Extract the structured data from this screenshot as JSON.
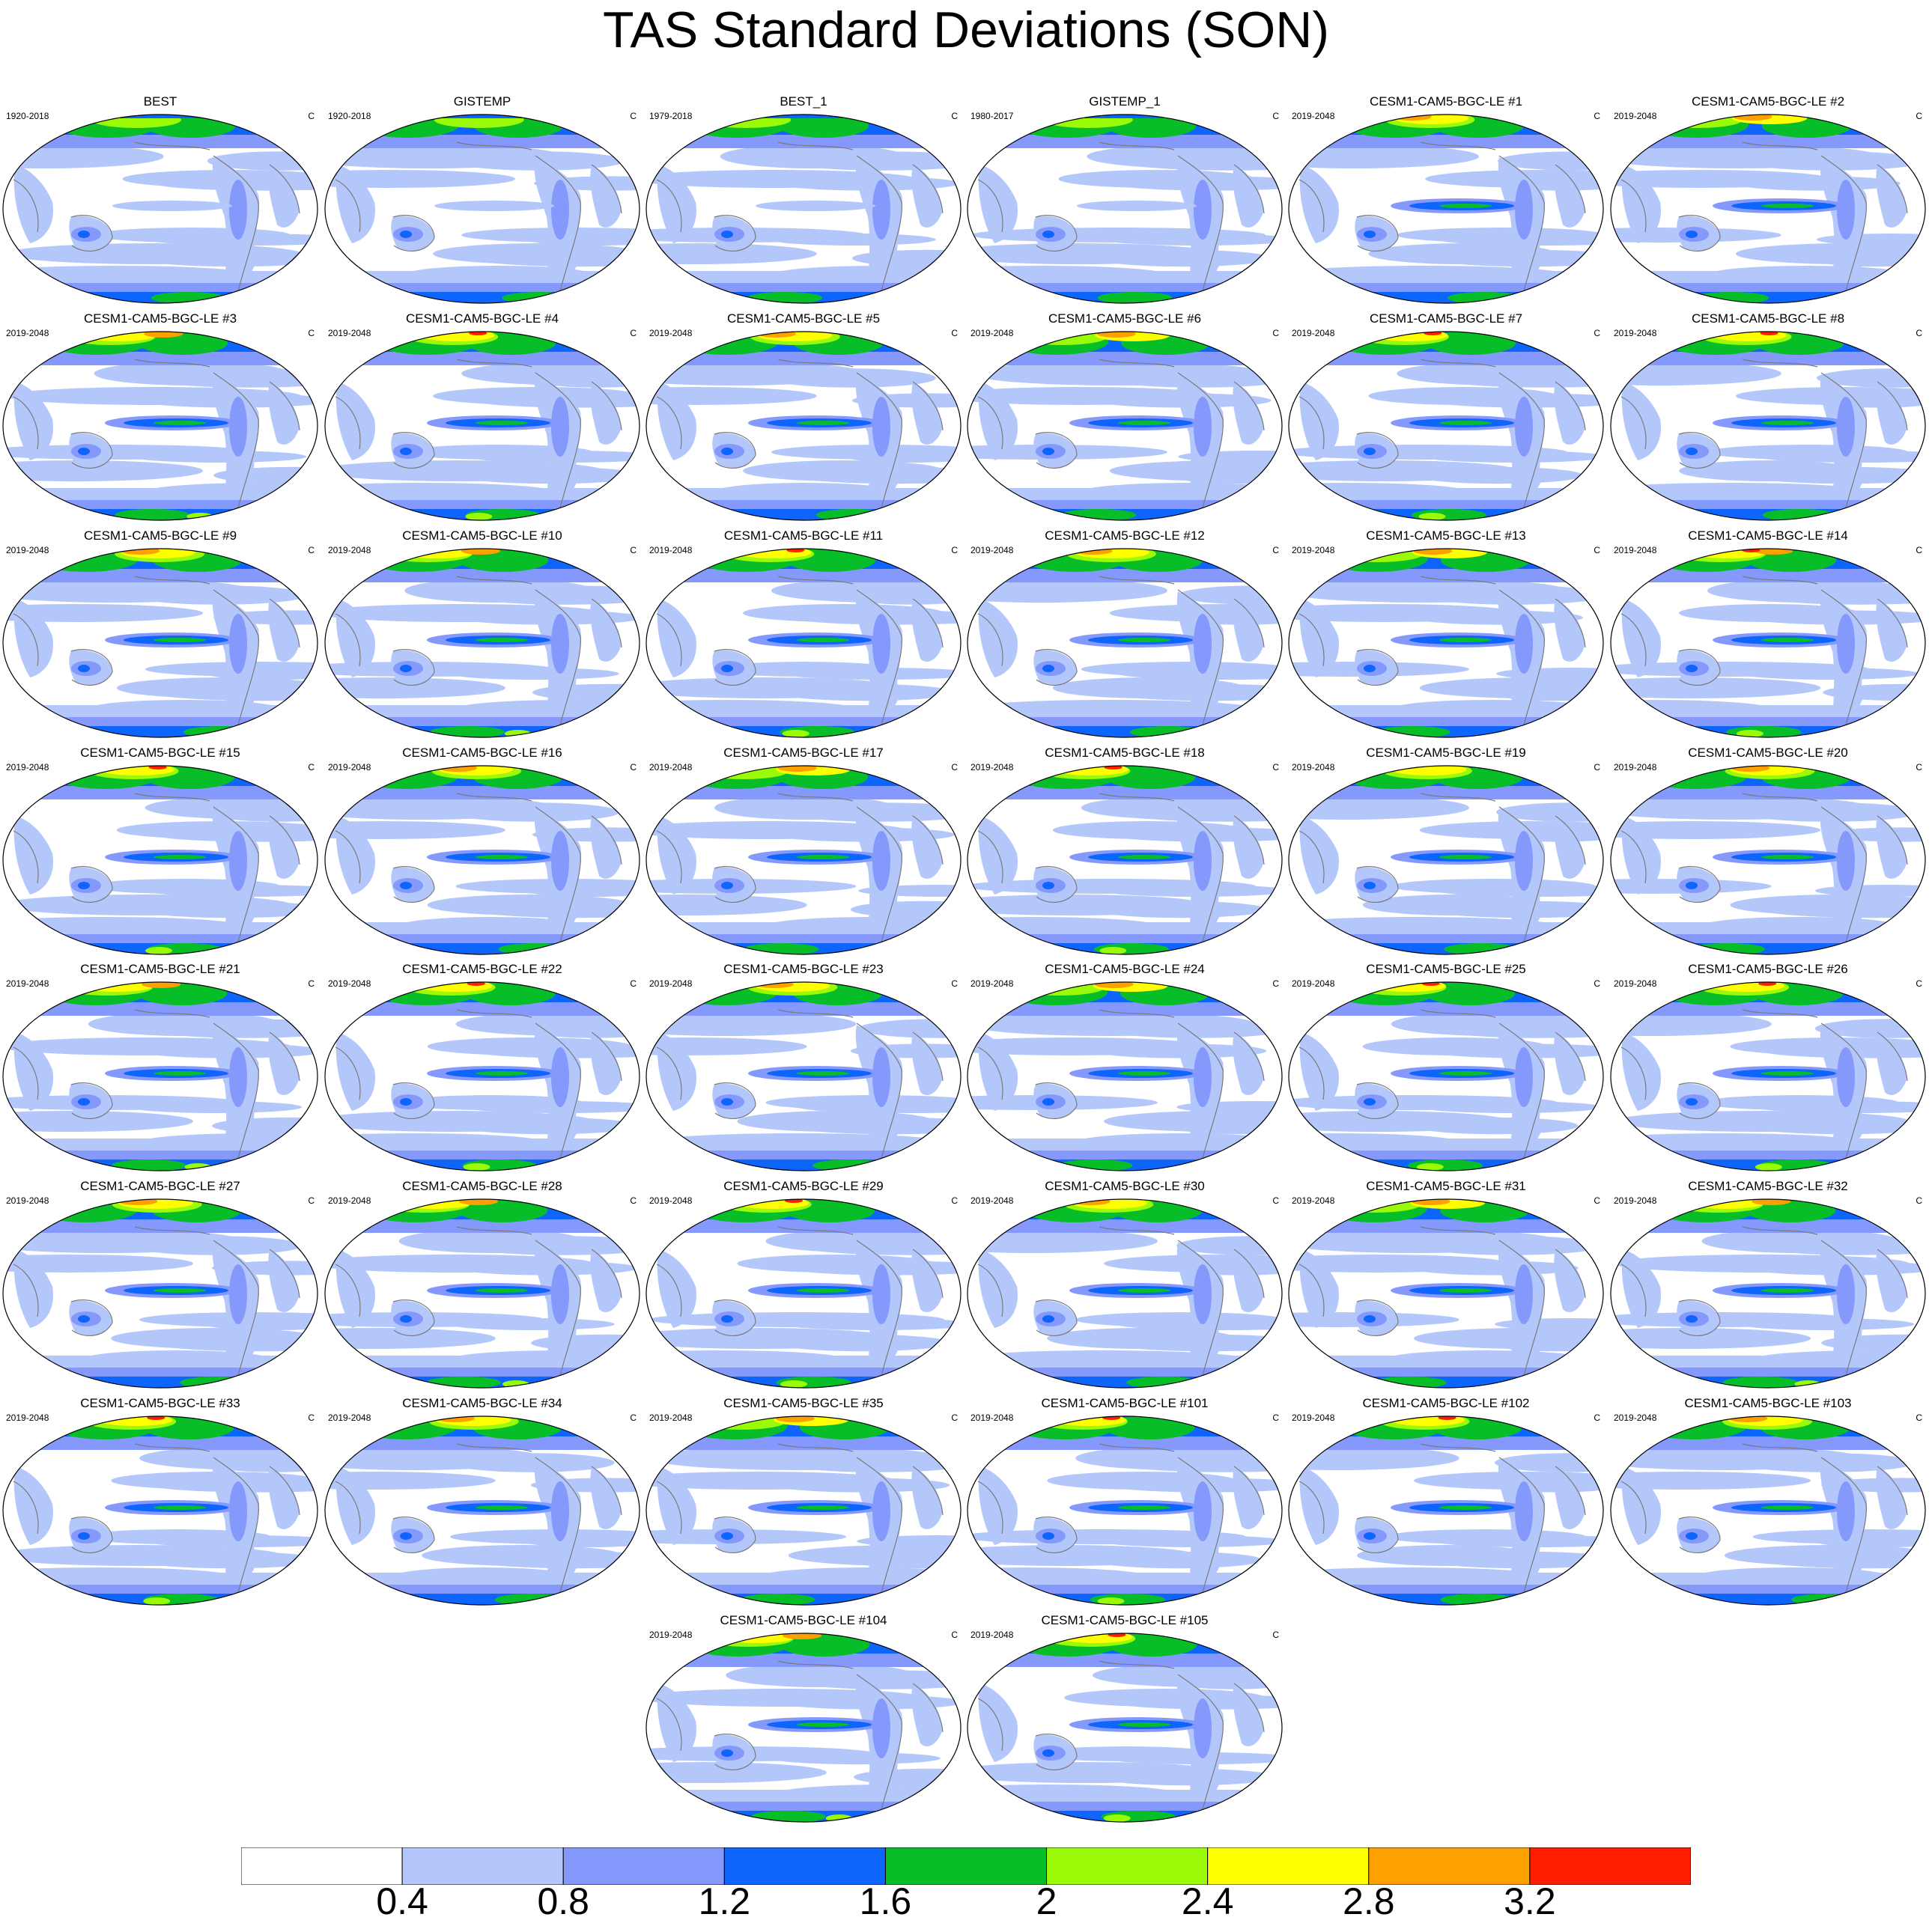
{
  "title": "TAS Standard Deviations (SON)",
  "units": "C",
  "panels": [
    {
      "title": "BEST",
      "period": "1920-2018",
      "palette": "obs"
    },
    {
      "title": "GISTEMP",
      "period": "1920-2018",
      "palette": "obs"
    },
    {
      "title": "BEST_1",
      "period": "1979-2018",
      "palette": "obs"
    },
    {
      "title": "GISTEMP_1",
      "period": "1980-2017",
      "palette": "obs"
    },
    {
      "title": "CESM1-CAM5-BGC-LE #1",
      "period": "2019-2048",
      "palette": "model"
    },
    {
      "title": "CESM1-CAM5-BGC-LE #2",
      "period": "2019-2048",
      "palette": "model"
    },
    {
      "title": "CESM1-CAM5-BGC-LE #3",
      "period": "2019-2048",
      "palette": "model"
    },
    {
      "title": "CESM1-CAM5-BGC-LE #4",
      "period": "2019-2048",
      "palette": "model"
    },
    {
      "title": "CESM1-CAM5-BGC-LE #5",
      "period": "2019-2048",
      "palette": "model"
    },
    {
      "title": "CESM1-CAM5-BGC-LE #6",
      "period": "2019-2048",
      "palette": "model"
    },
    {
      "title": "CESM1-CAM5-BGC-LE #7",
      "period": "2019-2048",
      "palette": "model"
    },
    {
      "title": "CESM1-CAM5-BGC-LE #8",
      "period": "2019-2048",
      "palette": "model"
    },
    {
      "title": "CESM1-CAM5-BGC-LE #9",
      "period": "2019-2048",
      "palette": "model"
    },
    {
      "title": "CESM1-CAM5-BGC-LE #10",
      "period": "2019-2048",
      "palette": "model"
    },
    {
      "title": "CESM1-CAM5-BGC-LE #11",
      "period": "2019-2048",
      "palette": "model"
    },
    {
      "title": "CESM1-CAM5-BGC-LE #12",
      "period": "2019-2048",
      "palette": "model"
    },
    {
      "title": "CESM1-CAM5-BGC-LE #13",
      "period": "2019-2048",
      "palette": "model"
    },
    {
      "title": "CESM1-CAM5-BGC-LE #14",
      "period": "2019-2048",
      "palette": "model"
    },
    {
      "title": "CESM1-CAM5-BGC-LE #15",
      "period": "2019-2048",
      "palette": "model"
    },
    {
      "title": "CESM1-CAM5-BGC-LE #16",
      "period": "2019-2048",
      "palette": "model"
    },
    {
      "title": "CESM1-CAM5-BGC-LE #17",
      "period": "2019-2048",
      "palette": "model"
    },
    {
      "title": "CESM1-CAM5-BGC-LE #18",
      "period": "2019-2048",
      "palette": "model"
    },
    {
      "title": "CESM1-CAM5-BGC-LE #19",
      "period": "2019-2048",
      "palette": "model"
    },
    {
      "title": "CESM1-CAM5-BGC-LE #20",
      "period": "2019-2048",
      "palette": "model"
    },
    {
      "title": "CESM1-CAM5-BGC-LE #21",
      "period": "2019-2048",
      "palette": "model"
    },
    {
      "title": "CESM1-CAM5-BGC-LE #22",
      "period": "2019-2048",
      "palette": "model"
    },
    {
      "title": "CESM1-CAM5-BGC-LE #23",
      "period": "2019-2048",
      "palette": "model"
    },
    {
      "title": "CESM1-CAM5-BGC-LE #24",
      "period": "2019-2048",
      "palette": "model"
    },
    {
      "title": "CESM1-CAM5-BGC-LE #25",
      "period": "2019-2048",
      "palette": "model"
    },
    {
      "title": "CESM1-CAM5-BGC-LE #26",
      "period": "2019-2048",
      "palette": "model"
    },
    {
      "title": "CESM1-CAM5-BGC-LE #27",
      "period": "2019-2048",
      "palette": "model"
    },
    {
      "title": "CESM1-CAM5-BGC-LE #28",
      "period": "2019-2048",
      "palette": "model"
    },
    {
      "title": "CESM1-CAM5-BGC-LE #29",
      "period": "2019-2048",
      "palette": "model"
    },
    {
      "title": "CESM1-CAM5-BGC-LE #30",
      "period": "2019-2048",
      "palette": "model"
    },
    {
      "title": "CESM1-CAM5-BGC-LE #31",
      "period": "2019-2048",
      "palette": "model"
    },
    {
      "title": "CESM1-CAM5-BGC-LE #32",
      "period": "2019-2048",
      "palette": "model"
    },
    {
      "title": "CESM1-CAM5-BGC-LE #33",
      "period": "2019-2048",
      "palette": "model"
    },
    {
      "title": "CESM1-CAM5-BGC-LE #34",
      "period": "2019-2048",
      "palette": "model"
    },
    {
      "title": "CESM1-CAM5-BGC-LE #35",
      "period": "2019-2048",
      "palette": "model"
    },
    {
      "title": "CESM1-CAM5-BGC-LE #101",
      "period": "2019-2048",
      "palette": "model"
    },
    {
      "title": "CESM1-CAM5-BGC-LE #102",
      "period": "2019-2048",
      "palette": "model"
    },
    {
      "title": "CESM1-CAM5-BGC-LE #103",
      "period": "2019-2048",
      "palette": "model"
    },
    {
      "title": "CESM1-CAM5-BGC-LE #104",
      "period": "2019-2048",
      "palette": "model"
    },
    {
      "title": "CESM1-CAM5-BGC-LE #105",
      "period": "2019-2048",
      "palette": "model"
    }
  ],
  "colorbar": {
    "levels": [
      "0.4",
      "0.8",
      "1.2",
      "1.6",
      "2",
      "2.4",
      "2.8",
      "3.2"
    ],
    "colors": [
      "#ffffff",
      "#b4c7fb",
      "#8499fb",
      "#0e65fb",
      "#08be28",
      "#9afa08",
      "#fefe00",
      "#fea000",
      "#fe1e00"
    ]
  },
  "colors": {
    "land_outline": "#7a7a7a",
    "ocean_background": "#ffffff"
  }
}
